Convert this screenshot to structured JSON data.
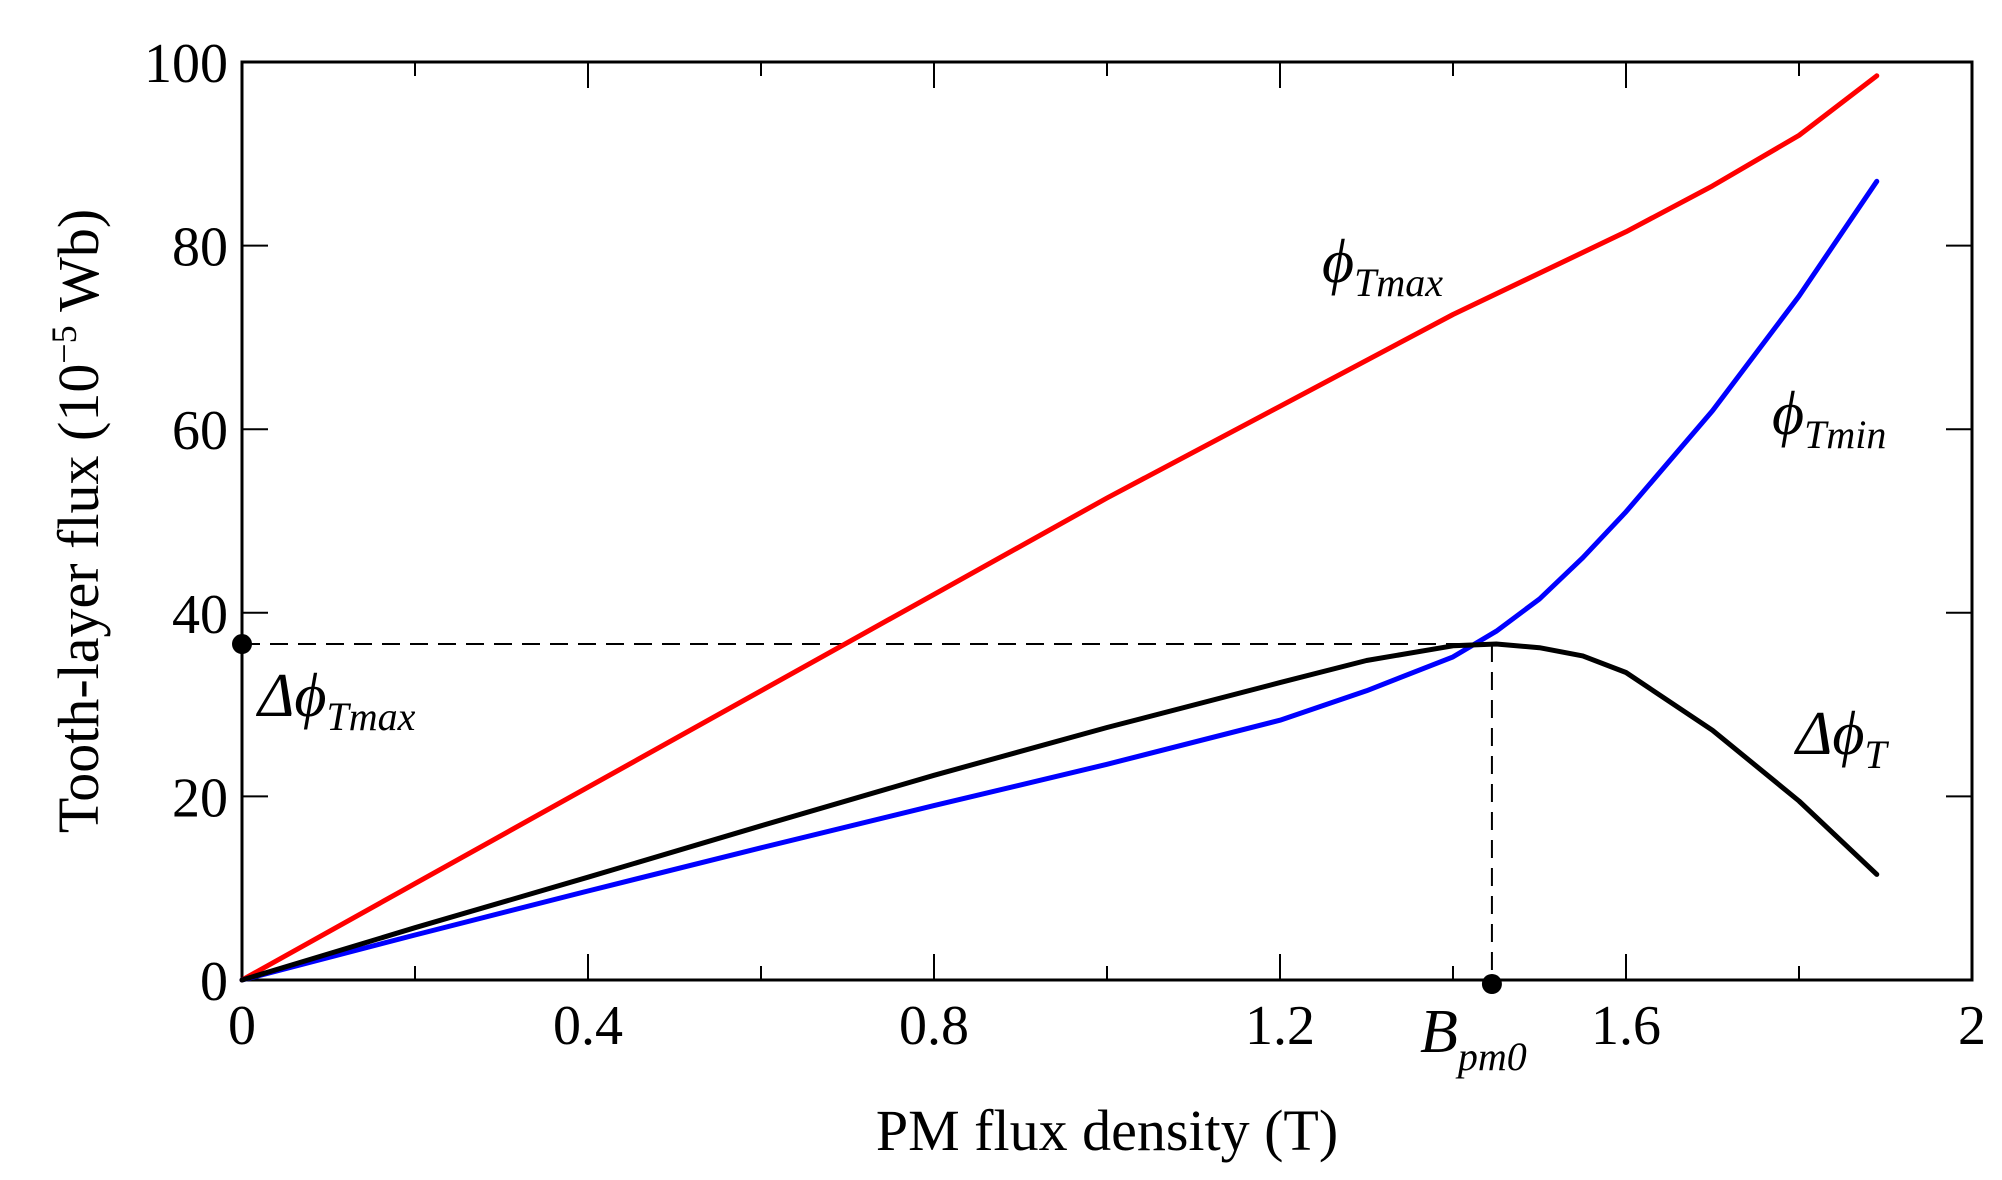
{
  "chart_data": {
    "type": "line",
    "title": "",
    "xlabel": "PM flux density (T)",
    "ylabel": "Tooth-layer flux (10",
    "ylabel_exp": "−5",
    "ylabel_unit": " Wb)",
    "xlim": [
      0,
      2
    ],
    "ylim": [
      0,
      100
    ],
    "x_ticks": [
      0,
      0.4,
      0.8,
      1.2,
      1.6,
      2
    ],
    "x_tick_labels": [
      "0",
      "0.4",
      "0.8",
      "1.2",
      "1.6",
      "2"
    ],
    "x_minor_ticks": [
      0.2,
      0.6,
      1.0,
      1.4,
      1.8
    ],
    "y_ticks": [
      0,
      20,
      40,
      60,
      80,
      100
    ],
    "y_tick_labels": [
      "0",
      "20",
      "40",
      "60",
      "80",
      "100"
    ],
    "grid": false,
    "series": [
      {
        "name": "phi_Tmax",
        "label_main": "ϕ",
        "label_sub": "Tmax",
        "color": "#ff0000",
        "x": [
          0,
          0.2,
          0.4,
          0.6,
          0.8,
          1.0,
          1.2,
          1.4,
          1.6,
          1.7,
          1.8,
          1.89
        ],
        "y": [
          0,
          10.5,
          21,
          31.5,
          42,
          52.5,
          62.5,
          72.5,
          81.5,
          86.5,
          92,
          98.5
        ]
      },
      {
        "name": "phi_Tmin",
        "label_main": "ϕ",
        "label_sub": "Tmin",
        "color": "#0000ff",
        "x": [
          0,
          0.2,
          0.4,
          0.6,
          0.8,
          1.0,
          1.2,
          1.3,
          1.4,
          1.45,
          1.5,
          1.55,
          1.6,
          1.7,
          1.8,
          1.89
        ],
        "y": [
          0,
          4.9,
          9.7,
          14.4,
          19,
          23.5,
          28.3,
          31.5,
          35.2,
          38,
          41.5,
          46,
          51,
          62,
          74.5,
          87
        ]
      },
      {
        "name": "delta_phi_T",
        "label_main": "Δϕ",
        "label_sub": "T",
        "color": "#000000",
        "x": [
          0,
          0.2,
          0.4,
          0.6,
          0.8,
          1.0,
          1.2,
          1.3,
          1.4,
          1.45,
          1.5,
          1.55,
          1.6,
          1.7,
          1.8,
          1.89
        ],
        "y": [
          0,
          5.7,
          11.2,
          16.8,
          22.3,
          27.5,
          32.4,
          34.8,
          36.4,
          36.6,
          36.2,
          35.3,
          33.5,
          27.2,
          19.5,
          11.5
        ]
      }
    ],
    "annotations": {
      "delta_max_main": "Δϕ",
      "delta_max_sub": "Tmax",
      "delta_max_value": 36.6,
      "bpm0_main": "B",
      "bpm0_sub": "pm0",
      "bpm0_value": 1.445
    }
  }
}
